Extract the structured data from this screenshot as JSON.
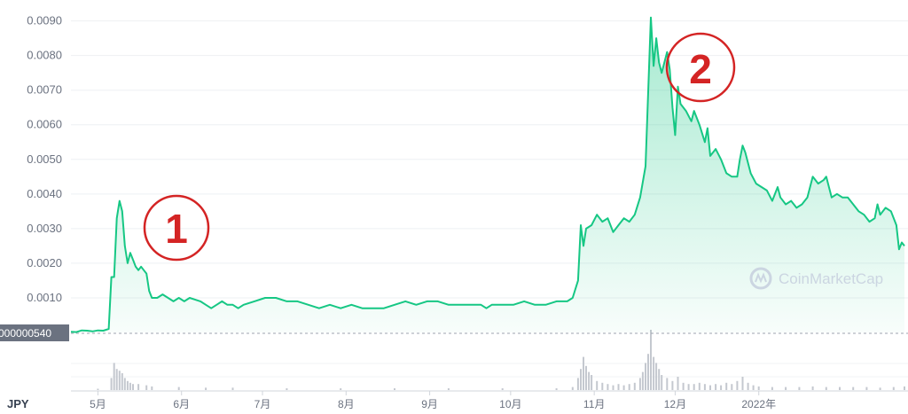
{
  "chart_data": {
    "type": "area",
    "currency": "JPY",
    "y_ticks": [
      "0.0010",
      "0.0020",
      "0.0030",
      "0.0040",
      "0.0050",
      "0.0060",
      "0.0070",
      "0.0080",
      "0.0090"
    ],
    "ylim": [
      0,
      0.0093
    ],
    "x_ticks": [
      "5月",
      "6月",
      "7月",
      "8月",
      "9月",
      "10月",
      "11月",
      "12月",
      "2022年"
    ],
    "current_price_label": "000000540",
    "watermark": "CoinMarketCap",
    "annotations": [
      "1",
      "2"
    ],
    "colors": {
      "line": "#16c784",
      "fill": "#16c784",
      "annotation": "#d42424",
      "badge": "#6b7280"
    },
    "series": [
      {
        "values": [
          [
            0,
            2e-05
          ],
          [
            2,
            1e-05
          ],
          [
            4,
            6e-05
          ],
          [
            6,
            5e-05
          ],
          [
            8,
            3e-05
          ],
          [
            10,
            6e-05
          ],
          [
            12,
            5e-05
          ],
          [
            14,
            0.0001
          ],
          [
            15,
            0.0016
          ],
          [
            16,
            0.0016
          ],
          [
            17,
            0.0033
          ],
          [
            18,
            0.0038
          ],
          [
            19,
            0.0035
          ],
          [
            20,
            0.0025
          ],
          [
            21,
            0.002
          ],
          [
            22,
            0.0023
          ],
          [
            23,
            0.0021
          ],
          [
            24,
            0.0019
          ],
          [
            25,
            0.0018
          ],
          [
            26,
            0.0019
          ],
          [
            27,
            0.0018
          ],
          [
            28,
            0.0017
          ],
          [
            29,
            0.0012
          ],
          [
            30,
            0.001
          ],
          [
            32,
            0.001
          ],
          [
            34,
            0.0011
          ],
          [
            36,
            0.001
          ],
          [
            38,
            0.0009
          ],
          [
            40,
            0.001
          ],
          [
            42,
            0.0009
          ],
          [
            44,
            0.001
          ],
          [
            46,
            0.00095
          ],
          [
            48,
            0.0009
          ],
          [
            50,
            0.0008
          ],
          [
            52,
            0.0007
          ],
          [
            54,
            0.0008
          ],
          [
            56,
            0.0009
          ],
          [
            58,
            0.0008
          ],
          [
            60,
            0.0008
          ],
          [
            62,
            0.0007
          ],
          [
            64,
            0.0008
          ],
          [
            68,
            0.0009
          ],
          [
            72,
            0.001
          ],
          [
            76,
            0.001
          ],
          [
            80,
            0.0009
          ],
          [
            84,
            0.0009
          ],
          [
            88,
            0.0008
          ],
          [
            92,
            0.0007
          ],
          [
            96,
            0.0008
          ],
          [
            100,
            0.0007
          ],
          [
            104,
            0.0008
          ],
          [
            108,
            0.0007
          ],
          [
            112,
            0.0007
          ],
          [
            116,
            0.0007
          ],
          [
            120,
            0.0008
          ],
          [
            124,
            0.0009
          ],
          [
            128,
            0.0008
          ],
          [
            132,
            0.0009
          ],
          [
            136,
            0.0009
          ],
          [
            140,
            0.0008
          ],
          [
            144,
            0.0008
          ],
          [
            148,
            0.0008
          ],
          [
            152,
            0.0008
          ],
          [
            154,
            0.0007
          ],
          [
            156,
            0.0008
          ],
          [
            160,
            0.0008
          ],
          [
            164,
            0.0008
          ],
          [
            168,
            0.0009
          ],
          [
            172,
            0.0008
          ],
          [
            176,
            0.0008
          ],
          [
            180,
            0.0009
          ],
          [
            184,
            0.0009
          ],
          [
            186,
            0.001
          ],
          [
            188,
            0.0015
          ],
          [
            189,
            0.0031
          ],
          [
            190,
            0.0025
          ],
          [
            191,
            0.003
          ],
          [
            193,
            0.0031
          ],
          [
            195,
            0.0034
          ],
          [
            197,
            0.0032
          ],
          [
            199,
            0.0033
          ],
          [
            201,
            0.0029
          ],
          [
            203,
            0.0031
          ],
          [
            205,
            0.0033
          ],
          [
            207,
            0.0032
          ],
          [
            209,
            0.0034
          ],
          [
            211,
            0.0039
          ],
          [
            213,
            0.0048
          ],
          [
            215,
            0.0091
          ],
          [
            216,
            0.0077
          ],
          [
            217,
            0.0085
          ],
          [
            218,
            0.0078
          ],
          [
            219,
            0.0075
          ],
          [
            221,
            0.0081
          ],
          [
            222,
            0.0076
          ],
          [
            223,
            0.0065
          ],
          [
            224,
            0.0057
          ],
          [
            225,
            0.0071
          ],
          [
            226,
            0.0066
          ],
          [
            228,
            0.0064
          ],
          [
            230,
            0.0061
          ],
          [
            231,
            0.0064
          ],
          [
            233,
            0.006
          ],
          [
            235,
            0.0055
          ],
          [
            236,
            0.0059
          ],
          [
            237,
            0.0051
          ],
          [
            239,
            0.0053
          ],
          [
            241,
            0.005
          ],
          [
            243,
            0.0046
          ],
          [
            245,
            0.0045
          ],
          [
            247,
            0.0045
          ],
          [
            248,
            0.005
          ],
          [
            249,
            0.0054
          ],
          [
            250,
            0.0052
          ],
          [
            252,
            0.0046
          ],
          [
            254,
            0.0043
          ],
          [
            256,
            0.0042
          ],
          [
            258,
            0.0041
          ],
          [
            260,
            0.0038
          ],
          [
            262,
            0.0042
          ],
          [
            263,
            0.0039
          ],
          [
            265,
            0.0037
          ],
          [
            267,
            0.0038
          ],
          [
            269,
            0.0036
          ],
          [
            271,
            0.0037
          ],
          [
            273,
            0.0039
          ],
          [
            275,
            0.0045
          ],
          [
            277,
            0.0043
          ],
          [
            279,
            0.0044
          ],
          [
            280,
            0.0045
          ],
          [
            282,
            0.0039
          ],
          [
            284,
            0.004
          ],
          [
            286,
            0.0039
          ],
          [
            288,
            0.0039
          ],
          [
            290,
            0.0037
          ],
          [
            292,
            0.0035
          ],
          [
            294,
            0.0034
          ],
          [
            296,
            0.0032
          ],
          [
            298,
            0.0033
          ],
          [
            299,
            0.0037
          ],
          [
            300,
            0.0034
          ],
          [
            302,
            0.0036
          ],
          [
            304,
            0.0035
          ],
          [
            306,
            0.0031
          ],
          [
            307,
            0.0024
          ],
          [
            308,
            0.0026
          ],
          [
            309,
            0.0025
          ]
        ]
      }
    ],
    "volume": [
      [
        10,
        0.02
      ],
      [
        15,
        0.2
      ],
      [
        16,
        0.45
      ],
      [
        17,
        0.35
      ],
      [
        18,
        0.32
      ],
      [
        19,
        0.28
      ],
      [
        20,
        0.2
      ],
      [
        21,
        0.15
      ],
      [
        22,
        0.12
      ],
      [
        23,
        0.1
      ],
      [
        25,
        0.1
      ],
      [
        28,
        0.08
      ],
      [
        30,
        0.06
      ],
      [
        40,
        0.05
      ],
      [
        50,
        0.04
      ],
      [
        60,
        0.04
      ],
      [
        80,
        0.03
      ],
      [
        100,
        0.03
      ],
      [
        120,
        0.03
      ],
      [
        140,
        0.03
      ],
      [
        160,
        0.03
      ],
      [
        180,
        0.03
      ],
      [
        186,
        0.05
      ],
      [
        188,
        0.2
      ],
      [
        189,
        0.35
      ],
      [
        190,
        0.55
      ],
      [
        191,
        0.4
      ],
      [
        192,
        0.3
      ],
      [
        193,
        0.25
      ],
      [
        195,
        0.15
      ],
      [
        197,
        0.12
      ],
      [
        199,
        0.1
      ],
      [
        201,
        0.08
      ],
      [
        203,
        0.1
      ],
      [
        205,
        0.08
      ],
      [
        207,
        0.1
      ],
      [
        209,
        0.12
      ],
      [
        211,
        0.2
      ],
      [
        212,
        0.3
      ],
      [
        213,
        0.45
      ],
      [
        214,
        0.6
      ],
      [
        215,
        1.0
      ],
      [
        216,
        0.55
      ],
      [
        217,
        0.45
      ],
      [
        218,
        0.35
      ],
      [
        219,
        0.25
      ],
      [
        221,
        0.2
      ],
      [
        223,
        0.15
      ],
      [
        225,
        0.22
      ],
      [
        227,
        0.12
      ],
      [
        229,
        0.1
      ],
      [
        231,
        0.1
      ],
      [
        233,
        0.12
      ],
      [
        235,
        0.1
      ],
      [
        237,
        0.08
      ],
      [
        239,
        0.1
      ],
      [
        241,
        0.08
      ],
      [
        243,
        0.12
      ],
      [
        245,
        0.1
      ],
      [
        247,
        0.15
      ],
      [
        249,
        0.22
      ],
      [
        251,
        0.12
      ],
      [
        253,
        0.08
      ],
      [
        255,
        0.06
      ],
      [
        260,
        0.05
      ],
      [
        265,
        0.05
      ],
      [
        270,
        0.05
      ],
      [
        275,
        0.06
      ],
      [
        280,
        0.05
      ],
      [
        285,
        0.05
      ],
      [
        290,
        0.05
      ],
      [
        295,
        0.05
      ],
      [
        300,
        0.04
      ],
      [
        305,
        0.05
      ],
      [
        309,
        0.06
      ]
    ]
  }
}
